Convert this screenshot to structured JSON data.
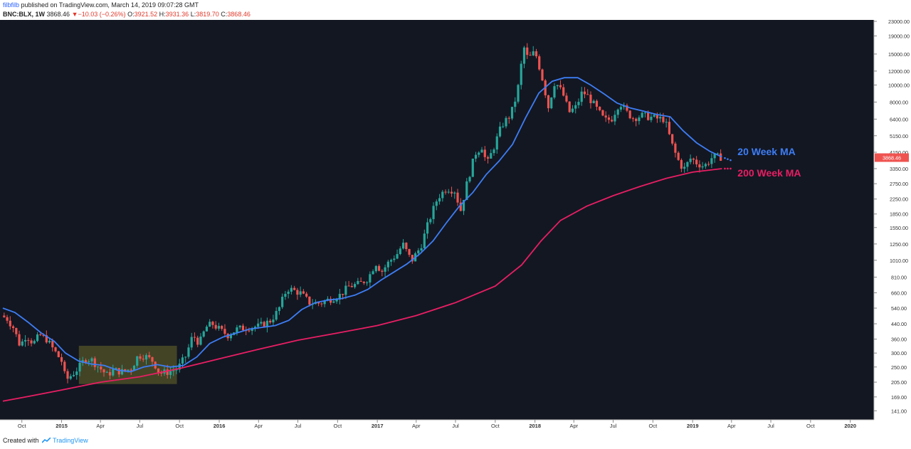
{
  "header": {
    "user": "filbfilb",
    "published": " published on TradingView.com, March 14, 2019 09:07:28 GMT",
    "symbol": "BNC:BLX, 1W",
    "last": "3868.46",
    "change_arrow": "▼",
    "change": "−10.03 (−0.26%)",
    "o_label": "O:",
    "o_val": "3921.52",
    "h_label": "H:",
    "h_val": "3931.36",
    "l_label": "L:",
    "l_val": "3819.70",
    "c_label": "C:",
    "c_val": "3868.46"
  },
  "footer": {
    "created_prefix": "Created with",
    "brand": "TradingView"
  },
  "colors": {
    "background": "#131722",
    "ma20": "#3d7df5",
    "ma200": "#e91e63",
    "candle_up": "#26a69a",
    "candle_down": "#ef5350",
    "highlight": "#6b6a2a",
    "price_tag": "#ef5350"
  },
  "chart_data": {
    "type": "candlestick",
    "scale": "log",
    "ylim": [
      130,
      23000
    ],
    "xlim": [
      "2014-08-18",
      "2020-02-15"
    ],
    "y_ticks": [
      "23000.00",
      "19000.00",
      "15000.00",
      "12000.00",
      "10000.00",
      "8000.00",
      "6400.00",
      "5150.00",
      "4150.00",
      "3350.00",
      "2750.00",
      "2250.00",
      "1850.00",
      "1550.00",
      "1250.00",
      "1010.00",
      "810.00",
      "660.00",
      "540.00",
      "440.00",
      "360.00",
      "300.00",
      "250.00",
      "205.00",
      "169.00",
      "141.00"
    ],
    "x_ticks": [
      {
        "label": "Oct",
        "date": "2014-10-01",
        "bold": false
      },
      {
        "label": "2015",
        "date": "2015-01-01",
        "bold": true
      },
      {
        "label": "Apr",
        "date": "2015-04-01",
        "bold": false
      },
      {
        "label": "Jul",
        "date": "2015-07-01",
        "bold": false
      },
      {
        "label": "Oct",
        "date": "2015-10-01",
        "bold": false
      },
      {
        "label": "2016",
        "date": "2016-01-01",
        "bold": true
      },
      {
        "label": "Apr",
        "date": "2016-04-01",
        "bold": false
      },
      {
        "label": "Jul",
        "date": "2016-07-01",
        "bold": false
      },
      {
        "label": "Oct",
        "date": "2016-10-01",
        "bold": false
      },
      {
        "label": "2017",
        "date": "2017-01-01",
        "bold": true
      },
      {
        "label": "Apr",
        "date": "2017-04-01",
        "bold": false
      },
      {
        "label": "Jul",
        "date": "2017-07-01",
        "bold": false
      },
      {
        "label": "Oct",
        "date": "2017-10-01",
        "bold": false
      },
      {
        "label": "2018",
        "date": "2018-01-01",
        "bold": true
      },
      {
        "label": "Apr",
        "date": "2018-04-01",
        "bold": false
      },
      {
        "label": "Jul",
        "date": "2018-07-01",
        "bold": false
      },
      {
        "label": "Oct",
        "date": "2018-10-01",
        "bold": false
      },
      {
        "label": "2019",
        "date": "2019-01-01",
        "bold": true
      },
      {
        "label": "Apr",
        "date": "2019-04-01",
        "bold": false
      },
      {
        "label": "Jul",
        "date": "2019-07-01",
        "bold": false
      },
      {
        "label": "Oct",
        "date": "2019-10-01",
        "bold": false
      },
      {
        "label": "2020",
        "date": "2020-01-01",
        "bold": true
      }
    ],
    "last_price_label": "3868.46",
    "annotations": [
      {
        "text": "20 Week MA",
        "date": "2019-04-15",
        "price": 4000,
        "color": "#3d7df5"
      },
      {
        "text": "200 Week MA",
        "date": "2019-04-15",
        "price": 3020,
        "color": "#e91e63"
      }
    ],
    "highlight_box": {
      "date_start": "2015-02-10",
      "date_end": "2015-09-25",
      "price_low": 200,
      "price_high": 330
    },
    "price_path": [
      [
        "2014-08-18",
        490
      ],
      [
        "2014-09-01",
        470
      ],
      [
        "2014-09-15",
        420
      ],
      [
        "2014-10-01",
        330
      ],
      [
        "2014-10-15",
        380
      ],
      [
        "2014-11-01",
        340
      ],
      [
        "2014-11-15",
        380
      ],
      [
        "2014-12-01",
        360
      ],
      [
        "2014-12-15",
        320
      ],
      [
        "2015-01-05",
        270
      ],
      [
        "2015-01-15",
        210
      ],
      [
        "2015-02-01",
        230
      ],
      [
        "2015-02-15",
        250
      ],
      [
        "2015-03-01",
        280
      ],
      [
        "2015-03-15",
        275
      ],
      [
        "2015-04-01",
        250
      ],
      [
        "2015-04-20",
        225
      ],
      [
        "2015-05-05",
        240
      ],
      [
        "2015-05-25",
        235
      ],
      [
        "2015-06-15",
        245
      ],
      [
        "2015-07-01",
        290
      ],
      [
        "2015-07-15",
        290
      ],
      [
        "2015-08-05",
        270
      ],
      [
        "2015-08-20",
        230
      ],
      [
        "2015-09-10",
        235
      ],
      [
        "2015-10-01",
        245
      ],
      [
        "2015-10-20",
        290
      ],
      [
        "2015-11-05",
        380
      ],
      [
        "2015-11-20",
        340
      ],
      [
        "2015-12-05",
        420
      ],
      [
        "2015-12-20",
        440
      ],
      [
        "2016-01-10",
        400
      ],
      [
        "2016-01-25",
        380
      ],
      [
        "2016-02-15",
        410
      ],
      [
        "2016-03-10",
        420
      ],
      [
        "2016-04-05",
        425
      ],
      [
        "2016-05-01",
        455
      ],
      [
        "2016-05-20",
        520
      ],
      [
        "2016-06-10",
        700
      ],
      [
        "2016-06-25",
        680
      ],
      [
        "2016-07-10",
        660
      ],
      [
        "2016-08-01",
        580
      ],
      [
        "2016-08-25",
        575
      ],
      [
        "2016-09-15",
        605
      ],
      [
        "2016-10-10",
        640
      ],
      [
        "2016-11-01",
        720
      ],
      [
        "2016-11-25",
        740
      ],
      [
        "2016-12-15",
        800
      ],
      [
        "2017-01-01",
        980
      ],
      [
        "2017-01-15",
        870
      ],
      [
        "2017-02-01",
        990
      ],
      [
        "2017-02-20",
        1100
      ],
      [
        "2017-03-05",
        1250
      ],
      [
        "2017-03-25",
        1000
      ],
      [
        "2017-04-15",
        1200
      ],
      [
        "2017-05-05",
        1700
      ],
      [
        "2017-05-25",
        2300
      ],
      [
        "2017-06-15",
        2600
      ],
      [
        "2017-07-05",
        2500
      ],
      [
        "2017-07-16",
        1900
      ],
      [
        "2017-08-01",
        2800
      ],
      [
        "2017-08-20",
        4100
      ],
      [
        "2017-09-05",
        4500
      ],
      [
        "2017-09-15",
        3500
      ],
      [
        "2017-10-01",
        4400
      ],
      [
        "2017-10-20",
        5900
      ],
      [
        "2017-11-10",
        6800
      ],
      [
        "2017-11-25",
        9000
      ],
      [
        "2017-12-10",
        16500
      ],
      [
        "2017-12-20",
        14000
      ],
      [
        "2018-01-05",
        15500
      ],
      [
        "2018-01-20",
        11500
      ],
      [
        "2018-02-05",
        7500
      ],
      [
        "2018-02-20",
        10500
      ],
      [
        "2018-03-10",
        9000
      ],
      [
        "2018-03-25",
        7000
      ],
      [
        "2018-04-10",
        7500
      ],
      [
        "2018-04-25",
        9200
      ],
      [
        "2018-05-10",
        8500
      ],
      [
        "2018-05-25",
        7500
      ],
      [
        "2018-06-15",
        6300
      ],
      [
        "2018-07-01",
        6400
      ],
      [
        "2018-07-20",
        8000
      ],
      [
        "2018-08-05",
        7000
      ],
      [
        "2018-08-20",
        6500
      ],
      [
        "2018-09-10",
        6700
      ],
      [
        "2018-09-25",
        6600
      ],
      [
        "2018-10-15",
        6450
      ],
      [
        "2018-11-01",
        6400
      ],
      [
        "2018-11-18",
        4600
      ],
      [
        "2018-12-01",
        3800
      ],
      [
        "2018-12-15",
        3300
      ],
      [
        "2019-01-01",
        3850
      ],
      [
        "2019-01-15",
        3600
      ],
      [
        "2019-02-01",
        3450
      ],
      [
        "2019-02-20",
        3900
      ],
      [
        "2019-03-10",
        3900
      ]
    ],
    "series": [
      {
        "name": "20 Week MA",
        "points": [
          [
            "2014-08-18",
            540
          ],
          [
            "2014-09-15",
            510
          ],
          [
            "2014-10-15",
            450
          ],
          [
            "2014-11-15",
            390
          ],
          [
            "2014-12-15",
            350
          ],
          [
            "2015-01-10",
            300
          ],
          [
            "2015-02-10",
            270
          ],
          [
            "2015-03-10",
            260
          ],
          [
            "2015-04-10",
            255
          ],
          [
            "2015-05-10",
            240
          ],
          [
            "2015-06-10",
            235
          ],
          [
            "2015-07-10",
            250
          ],
          [
            "2015-08-10",
            258
          ],
          [
            "2015-09-10",
            250
          ],
          [
            "2015-10-10",
            255
          ],
          [
            "2015-11-10",
            285
          ],
          [
            "2015-12-10",
            340
          ],
          [
            "2016-01-10",
            370
          ],
          [
            "2016-02-10",
            390
          ],
          [
            "2016-03-10",
            410
          ],
          [
            "2016-04-10",
            420
          ],
          [
            "2016-05-10",
            430
          ],
          [
            "2016-06-10",
            460
          ],
          [
            "2016-07-10",
            530
          ],
          [
            "2016-08-10",
            580
          ],
          [
            "2016-09-10",
            600
          ],
          [
            "2016-10-10",
            612
          ],
          [
            "2016-11-10",
            640
          ],
          [
            "2016-12-10",
            690
          ],
          [
            "2017-01-10",
            780
          ],
          [
            "2017-02-10",
            870
          ],
          [
            "2017-03-10",
            960
          ],
          [
            "2017-04-10",
            1100
          ],
          [
            "2017-05-10",
            1300
          ],
          [
            "2017-06-10",
            1650
          ],
          [
            "2017-07-10",
            2050
          ],
          [
            "2017-08-10",
            2450
          ],
          [
            "2017-09-10",
            3100
          ],
          [
            "2017-10-10",
            3700
          ],
          [
            "2017-11-10",
            4600
          ],
          [
            "2017-12-10",
            6500
          ],
          [
            "2018-01-10",
            9000
          ],
          [
            "2018-02-10",
            10500
          ],
          [
            "2018-03-10",
            11000
          ],
          [
            "2018-04-10",
            11000
          ],
          [
            "2018-05-10",
            10000
          ],
          [
            "2018-06-10",
            8900
          ],
          [
            "2018-07-10",
            7900
          ],
          [
            "2018-08-10",
            7400
          ],
          [
            "2018-09-10",
            7100
          ],
          [
            "2018-10-10",
            6800
          ],
          [
            "2018-11-10",
            6600
          ],
          [
            "2018-12-10",
            5500
          ],
          [
            "2019-01-10",
            4700
          ],
          [
            "2019-02-10",
            4200
          ],
          [
            "2019-03-10",
            3900
          ]
        ]
      },
      {
        "name": "200 Week MA",
        "points": [
          [
            "2014-08-18",
            160
          ],
          [
            "2014-10-15",
            170
          ],
          [
            "2015-01-01",
            185
          ],
          [
            "2015-04-01",
            205
          ],
          [
            "2015-07-01",
            220
          ],
          [
            "2015-10-01",
            245
          ],
          [
            "2016-01-01",
            278
          ],
          [
            "2016-04-01",
            315
          ],
          [
            "2016-07-01",
            355
          ],
          [
            "2016-10-01",
            390
          ],
          [
            "2017-01-01",
            430
          ],
          [
            "2017-04-01",
            490
          ],
          [
            "2017-07-01",
            580
          ],
          [
            "2017-10-01",
            720
          ],
          [
            "2017-12-01",
            950
          ],
          [
            "2018-01-15",
            1300
          ],
          [
            "2018-03-01",
            1700
          ],
          [
            "2018-05-01",
            2050
          ],
          [
            "2018-07-01",
            2350
          ],
          [
            "2018-09-01",
            2650
          ],
          [
            "2018-11-01",
            2950
          ],
          [
            "2019-01-01",
            3200
          ],
          [
            "2019-03-10",
            3350
          ]
        ]
      }
    ]
  }
}
